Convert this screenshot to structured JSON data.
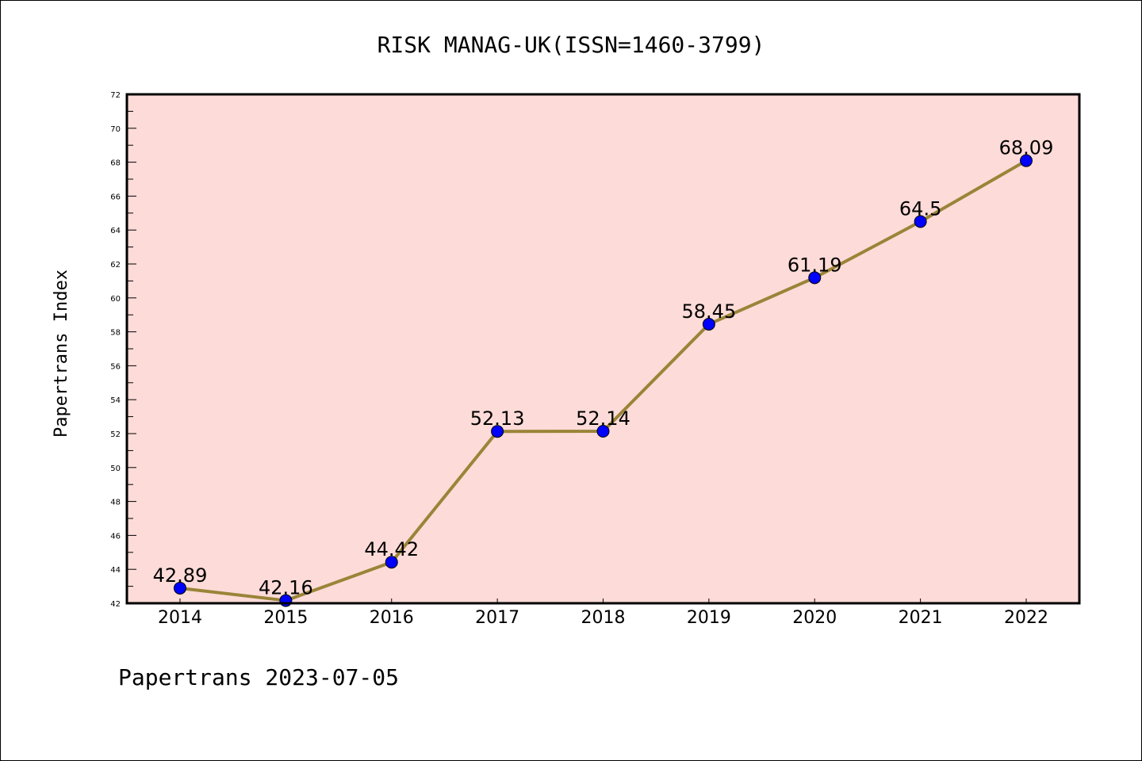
{
  "chart_data": {
    "type": "line",
    "title": "RISK MANAG-UK(ISSN=1460-3799)",
    "xlabel": "",
    "ylabel": "Papertrans Index",
    "categories": [
      "2014",
      "2015",
      "2016",
      "2017",
      "2018",
      "2019",
      "2020",
      "2021",
      "2022"
    ],
    "series": [
      {
        "name": "Papertrans Index",
        "values": [
          42.89,
          42.16,
          44.42,
          52.13,
          52.14,
          58.45,
          61.19,
          64.5,
          68.09
        ],
        "labels": [
          "42.89",
          "42.16",
          "44.42",
          "52.13",
          "52.14",
          "58.45",
          "61.19",
          "64.5",
          "68.09"
        ]
      }
    ],
    "ylim": [
      42,
      72
    ],
    "yticks": [
      "42",
      "44",
      "46",
      "48",
      "50",
      "52",
      "54",
      "56",
      "58",
      "60",
      "62",
      "64",
      "66",
      "68",
      "70",
      "72"
    ],
    "grid": false,
    "legend": "none",
    "colors": {
      "plot_background": "#fddbd8",
      "line": "#9a8438",
      "marker": "#0000ff",
      "marker_edge": "#000000",
      "axis": "#000000"
    },
    "footer": "Papertrans 2023-07-05"
  }
}
